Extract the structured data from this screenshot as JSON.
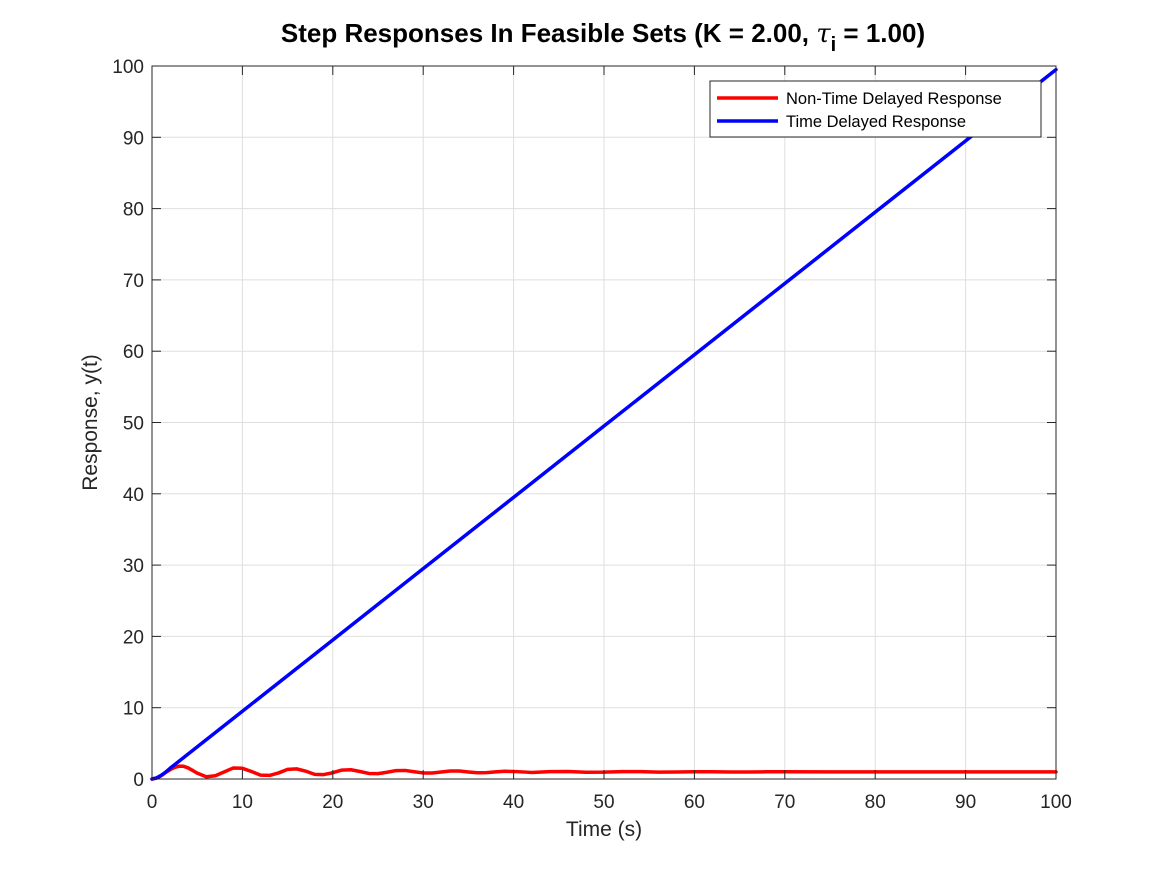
{
  "chart_data": {
    "type": "line",
    "title": {
      "prefix": "Step Responses In Feasible Sets (K = 2.00, ",
      "symbol": "τ",
      "subscript": "i",
      "suffix": " = 1.00)"
    },
    "xlabel": "Time (s)",
    "ylabel": "Response, y(t)",
    "xlim": [
      0,
      100
    ],
    "ylim": [
      0,
      100
    ],
    "xticks": [
      0,
      10,
      20,
      30,
      40,
      50,
      60,
      70,
      80,
      90,
      100
    ],
    "yticks": [
      0,
      10,
      20,
      30,
      40,
      50,
      60,
      70,
      80,
      90,
      100
    ],
    "grid": true,
    "legend_position": "top-right",
    "series": [
      {
        "name": "Non-Time Delayed Response",
        "color": "#ff0000",
        "x": [
          0,
          0.5,
          1,
          1.5,
          2,
          2.5,
          3,
          3.5,
          4,
          4.5,
          5,
          6,
          7,
          8,
          9,
          10,
          11,
          12,
          13,
          14,
          15,
          16,
          17,
          18,
          19,
          20,
          21,
          22,
          23,
          24,
          25,
          26,
          27,
          28,
          29,
          30,
          31,
          32,
          33,
          34,
          35,
          36,
          37,
          38,
          39,
          40,
          42,
          44,
          46,
          48,
          50,
          52,
          54,
          56,
          58,
          60,
          62,
          64,
          66,
          68,
          70,
          75,
          80,
          85,
          90,
          95,
          100
        ],
        "y": [
          0,
          0.12,
          0.45,
          0.9,
          1.3,
          1.62,
          1.8,
          1.78,
          1.55,
          1.2,
          0.82,
          0.32,
          0.45,
          1.0,
          1.55,
          1.5,
          1.05,
          0.55,
          0.5,
          0.85,
          1.35,
          1.42,
          1.1,
          0.65,
          0.62,
          0.88,
          1.25,
          1.3,
          1.05,
          0.78,
          0.75,
          0.95,
          1.18,
          1.2,
          1.02,
          0.85,
          0.84,
          0.98,
          1.12,
          1.12,
          0.98,
          0.88,
          0.9,
          1.0,
          1.08,
          1.06,
          0.92,
          1.04,
          1.06,
          0.95,
          0.96,
          1.04,
          1.04,
          0.97,
          0.98,
          1.02,
          1.02,
          0.98,
          0.99,
          1.01,
          1.01,
          1.0,
          1.0,
          1.0,
          1.0,
          1.0,
          1.0
        ]
      },
      {
        "name": "Time Delayed Response",
        "color": "#0000ff",
        "x": [
          0,
          0.5,
          1,
          1.5,
          2,
          3,
          4,
          5,
          10,
          20,
          30,
          40,
          50,
          60,
          70,
          80,
          90,
          100
        ],
        "y": [
          0,
          0.15,
          0.5,
          0.95,
          1.5,
          2.5,
          3.5,
          4.5,
          9.5,
          19.5,
          29.5,
          39.5,
          49.5,
          59.5,
          69.5,
          79.5,
          89.5,
          99.5
        ]
      }
    ]
  }
}
